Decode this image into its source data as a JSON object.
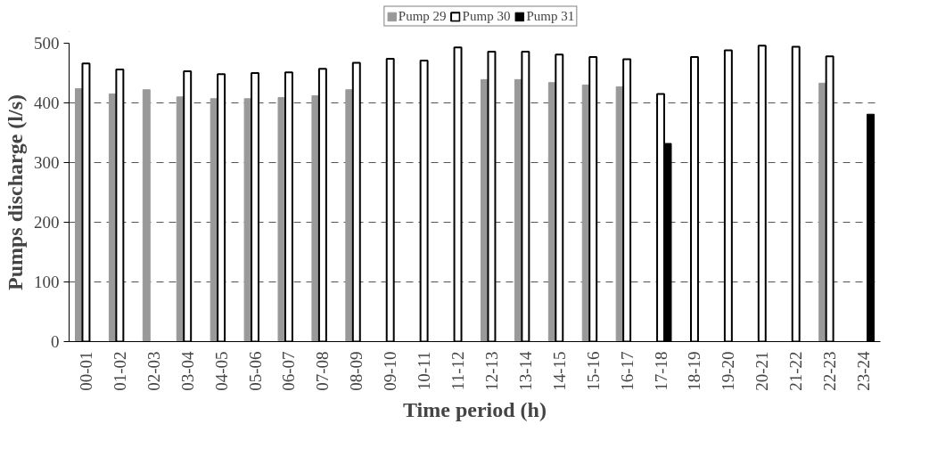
{
  "chart_data": {
    "type": "bar",
    "xlabel": "Time period (h)",
    "ylabel": "Pumps discharge (l/s)",
    "categories": [
      "00-01",
      "01-02",
      "02-03",
      "03-04",
      "04-05",
      "05-06",
      "06-07",
      "07-08",
      "08-09",
      "09-10",
      "10-11",
      "11-12",
      "12-13",
      "13-14",
      "14-15",
      "15-16",
      "16-17",
      "17-18",
      "18-19",
      "19-20",
      "20-21",
      "21-22",
      "22-23",
      "23-24"
    ],
    "series": [
      {
        "name": "Pump 29",
        "color": "#999999",
        "values": [
          424,
          415,
          422,
          410,
          407,
          407,
          409,
          412,
          422,
          null,
          null,
          null,
          439,
          439,
          434,
          430,
          427,
          null,
          null,
          null,
          null,
          null,
          433,
          null
        ]
      },
      {
        "name": "Pump 30",
        "color": "#ffffff",
        "values": [
          466,
          456,
          null,
          453,
          448,
          450,
          451,
          457,
          467,
          474,
          471,
          493,
          486,
          486,
          481,
          477,
          473,
          415,
          477,
          488,
          496,
          494,
          478,
          null
        ]
      },
      {
        "name": "Pump 31",
        "color": "#000000",
        "values": [
          null,
          null,
          null,
          null,
          null,
          null,
          null,
          null,
          null,
          null,
          null,
          null,
          null,
          null,
          null,
          null,
          null,
          332,
          null,
          null,
          null,
          null,
          null,
          381
        ]
      }
    ],
    "ylim": [
      0,
      500
    ],
    "yticks": [
      0,
      100,
      200,
      300,
      400,
      500
    ],
    "grid": "y",
    "legend": "top"
  }
}
